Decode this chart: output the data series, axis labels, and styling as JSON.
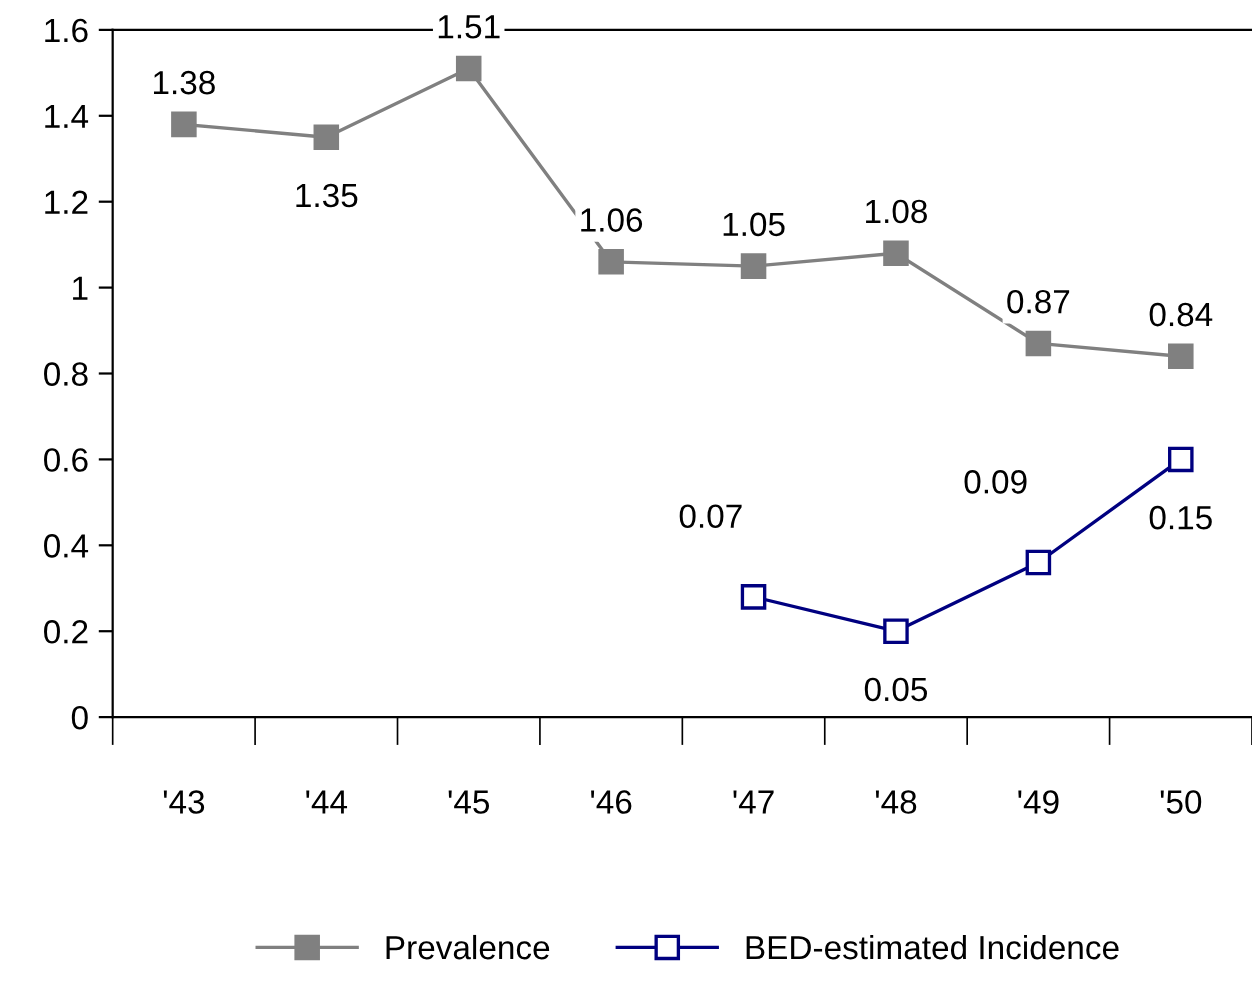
{
  "chart_data": {
    "type": "line",
    "categories": [
      "'43",
      "'44",
      "'45",
      "'46",
      "'47",
      "'48",
      "'49",
      "'50"
    ],
    "series": [
      {
        "name": "Prevalence",
        "color": "#808080",
        "marker": "square",
        "values": [
          1.38,
          1.35,
          1.51,
          1.06,
          1.05,
          1.08,
          0.87,
          0.84
        ],
        "value_labels": [
          "1.38",
          "1.35",
          "1.51",
          "1.06",
          "1.05",
          "1.08",
          "0.87",
          "0.84"
        ]
      },
      {
        "name": "BED-estimated Incidence",
        "color": "#000080",
        "marker": "square",
        "axis": "y2",
        "values": [
          null,
          null,
          null,
          null,
          0.07,
          0.05,
          0.09,
          0.15
        ],
        "value_labels": [
          null,
          null,
          null,
          null,
          "0.07",
          "0.05",
          "0.09",
          "0.15"
        ]
      }
    ],
    "ylim": [
      0,
      1.6
    ],
    "yticks": [
      0,
      0.2,
      0.4,
      0.6,
      0.8,
      1,
      1.2,
      1.4,
      1.6
    ],
    "y2lim": [
      0,
      0.4
    ],
    "tick_labels": "xy",
    "grid": false,
    "legend": "bottom",
    "line_style": "solid"
  }
}
